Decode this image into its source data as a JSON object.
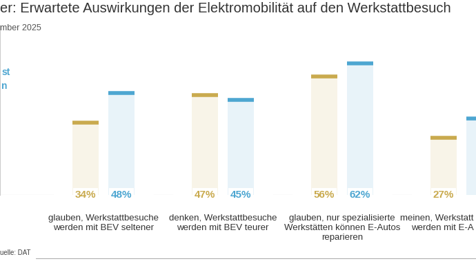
{
  "chart_data": {
    "type": "bar",
    "title": "er: Erwartete Auswirkungen der Elektromobilität auf den Werkstattbesuch",
    "subtitle": "mber 2025",
    "source": "uelle: DAT",
    "categories": [
      "glauben, Werkstattbesuche\nwerden mit BEV seltener",
      "denken, Werkstattbesuche\nwerden mit BEV teurer",
      "glauben, nur spezialisierte\nWerkstätten können E-Autos\nreparieren",
      "meinen, Werkstatt\nwerden mit E-A"
    ],
    "series": [
      {
        "name": null,
        "color": "#c9aa4e",
        "values": [
          34,
          47,
          56,
          27
        ],
        "value_labels": [
          "34%",
          "47%",
          "56%",
          "27%"
        ]
      },
      {
        "name": "st\nn",
        "color": "#4da6d1",
        "values": [
          48,
          45,
          62,
          36
        ],
        "value_labels": [
          "48%",
          "45%",
          "62%",
          null
        ]
      }
    ],
    "ylim": [
      0,
      80
    ],
    "data_labels": true,
    "tick_labels": false
  }
}
